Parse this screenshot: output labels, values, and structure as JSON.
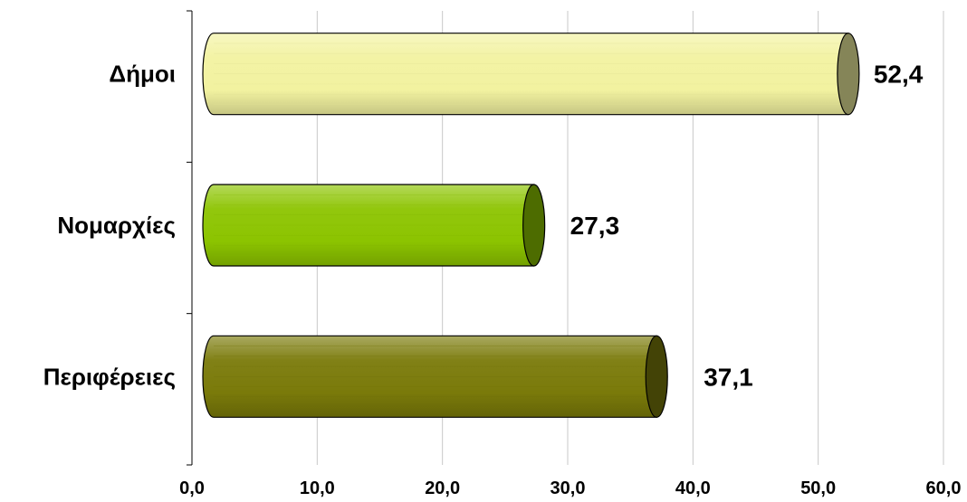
{
  "chart_data": {
    "type": "bar",
    "orientation": "horizontal",
    "style": "3d-cylinder",
    "categories": [
      "Δήμοι",
      "Νομαρχίες",
      "Περιφέρειες"
    ],
    "values": [
      52.4,
      27.3,
      37.1
    ],
    "data_labels": [
      "52,4",
      "27,3",
      "37,1"
    ],
    "xlim": [
      0,
      60
    ],
    "x_ticks": [
      0,
      10,
      20,
      30,
      40,
      50,
      60
    ],
    "x_tick_labels": [
      "0,0",
      "10,0",
      "20,0",
      "30,0",
      "40,0",
      "50,0",
      "60,0"
    ],
    "grid": true,
    "legend": false,
    "colors": [
      "#f2f2a0",
      "#8cc400",
      "#7a7a0a"
    ]
  }
}
